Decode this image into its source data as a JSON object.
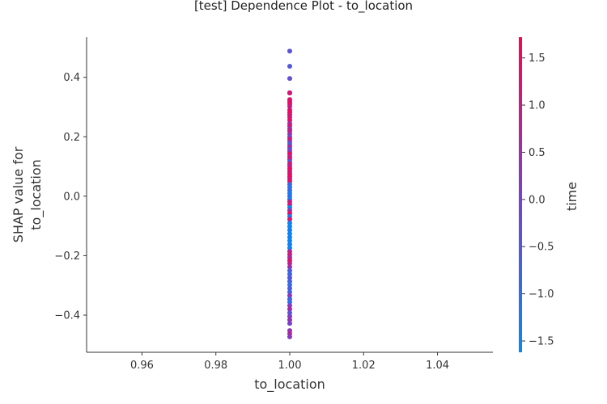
{
  "chart_data": {
    "type": "scatter",
    "title": "[test] Dependence Plot - to_location",
    "xlabel": "to_location",
    "ylabel_lines": [
      "SHAP value for",
      "to_location"
    ],
    "xlim": [
      0.945,
      1.055
    ],
    "ylim": [
      -0.525,
      0.535
    ],
    "xticks": [
      0.96,
      0.98,
      1.0,
      1.02,
      1.04
    ],
    "xtick_labels": [
      "0.96",
      "0.98",
      "1.00",
      "1.02",
      "1.04"
    ],
    "yticks": [
      -0.4,
      -0.2,
      0.0,
      0.2,
      0.4
    ],
    "ytick_labels": [
      "−0.4",
      "−0.2",
      "0.0",
      "0.2",
      "0.4"
    ],
    "colorbar": {
      "label": "time",
      "range": [
        -1.62,
        1.72
      ],
      "ticks": [
        -1.5,
        -1.0,
        -0.5,
        0.0,
        0.5,
        1.0,
        1.5
      ],
      "tick_labels": [
        "−1.5",
        "−1.0",
        "−0.5",
        "0.0",
        "0.5",
        "1.0",
        "1.5"
      ],
      "color_low": "#008afb",
      "color_mid": "#7c3fc9",
      "color_high": "#ff0052"
    },
    "points": [
      {
        "x": 1.0,
        "y": 0.488,
        "c": -0.4
      },
      {
        "x": 1.0,
        "y": 0.437,
        "c": -0.5
      },
      {
        "x": 1.0,
        "y": 0.396,
        "c": -0.3
      },
      {
        "x": 1.0,
        "y": 0.348,
        "c": 1.1
      },
      {
        "x": 1.0,
        "y": 0.347,
        "c": 1.2
      },
      {
        "x": 1.0,
        "y": 0.325,
        "c": 1.4
      },
      {
        "x": 1.0,
        "y": 0.318,
        "c": 1.3
      },
      {
        "x": 1.0,
        "y": 0.31,
        "c": 1.5
      },
      {
        "x": 1.0,
        "y": 0.302,
        "c": 1.0
      },
      {
        "x": 1.0,
        "y": 0.29,
        "c": 1.2
      },
      {
        "x": 1.0,
        "y": 0.282,
        "c": 1.6
      },
      {
        "x": 1.0,
        "y": 0.274,
        "c": 1.3
      },
      {
        "x": 1.0,
        "y": 0.266,
        "c": 1.1
      },
      {
        "x": 1.0,
        "y": 0.256,
        "c": 1.4
      },
      {
        "x": 1.0,
        "y": 0.245,
        "c": 0.6
      },
      {
        "x": 1.0,
        "y": 0.237,
        "c": 1.2
      },
      {
        "x": 1.0,
        "y": 0.228,
        "c": 0.4
      },
      {
        "x": 1.0,
        "y": 0.22,
        "c": 1.0
      },
      {
        "x": 1.0,
        "y": 0.21,
        "c": 0.5
      },
      {
        "x": 1.0,
        "y": 0.2,
        "c": -0.2
      },
      {
        "x": 1.0,
        "y": 0.192,
        "c": 1.3
      },
      {
        "x": 1.0,
        "y": 0.183,
        "c": 0.3
      },
      {
        "x": 1.0,
        "y": 0.175,
        "c": -0.6
      },
      {
        "x": 1.0,
        "y": 0.166,
        "c": 0.8
      },
      {
        "x": 1.0,
        "y": 0.158,
        "c": -0.3
      },
      {
        "x": 1.0,
        "y": 0.15,
        "c": 0.2
      },
      {
        "x": 1.0,
        "y": 0.142,
        "c": 1.5
      },
      {
        "x": 1.0,
        "y": 0.133,
        "c": 0.9
      },
      {
        "x": 1.0,
        "y": 0.125,
        "c": 1.2
      },
      {
        "x": 1.0,
        "y": 0.117,
        "c": -0.4
      },
      {
        "x": 1.0,
        "y": 0.108,
        "c": 1.4
      },
      {
        "x": 1.0,
        "y": 0.1,
        "c": 0.7
      },
      {
        "x": 1.0,
        "y": 0.092,
        "c": 1.6
      },
      {
        "x": 1.0,
        "y": 0.083,
        "c": 1.1
      },
      {
        "x": 1.0,
        "y": 0.075,
        "c": 1.3
      },
      {
        "x": 1.0,
        "y": 0.066,
        "c": 1.5
      },
      {
        "x": 1.0,
        "y": 0.058,
        "c": 1.2
      },
      {
        "x": 1.0,
        "y": 0.05,
        "c": 1.4
      },
      {
        "x": 1.0,
        "y": 0.04,
        "c": -0.8
      },
      {
        "x": 1.0,
        "y": 0.03,
        "c": -1.1
      },
      {
        "x": 1.0,
        "y": 0.02,
        "c": -0.9
      },
      {
        "x": 1.0,
        "y": 0.01,
        "c": -1.3
      },
      {
        "x": 1.0,
        "y": 0.0,
        "c": -1.0
      },
      {
        "x": 1.0,
        "y": -0.01,
        "c": -1.4
      },
      {
        "x": 1.0,
        "y": -0.018,
        "c": 0.9
      },
      {
        "x": 1.0,
        "y": -0.028,
        "c": 1.2
      },
      {
        "x": 1.0,
        "y": -0.038,
        "c": -1.5
      },
      {
        "x": 1.0,
        "y": -0.048,
        "c": 0.4
      },
      {
        "x": 1.0,
        "y": -0.058,
        "c": 1.4
      },
      {
        "x": 1.0,
        "y": -0.068,
        "c": -1.2
      },
      {
        "x": 1.0,
        "y": -0.078,
        "c": 1.3
      },
      {
        "x": 1.0,
        "y": -0.09,
        "c": -1.4
      },
      {
        "x": 1.0,
        "y": -0.102,
        "c": -1.5
      },
      {
        "x": 1.0,
        "y": -0.114,
        "c": -1.3
      },
      {
        "x": 1.0,
        "y": -0.126,
        "c": -1.5
      },
      {
        "x": 1.0,
        "y": -0.138,
        "c": -1.4
      },
      {
        "x": 1.0,
        "y": -0.15,
        "c": -1.5
      },
      {
        "x": 1.0,
        "y": -0.162,
        "c": -1.3
      },
      {
        "x": 1.0,
        "y": -0.174,
        "c": -1.5
      },
      {
        "x": 1.0,
        "y": -0.186,
        "c": 0.8
      },
      {
        "x": 1.0,
        "y": -0.196,
        "c": 1.1
      },
      {
        "x": 1.0,
        "y": -0.206,
        "c": 0.6
      },
      {
        "x": 1.0,
        "y": -0.216,
        "c": 1.3
      },
      {
        "x": 1.0,
        "y": -0.226,
        "c": 0.9
      },
      {
        "x": 1.0,
        "y": -0.238,
        "c": 0.5
      },
      {
        "x": 1.0,
        "y": -0.25,
        "c": -0.6
      },
      {
        "x": 1.0,
        "y": -0.262,
        "c": -0.8
      },
      {
        "x": 1.0,
        "y": -0.274,
        "c": -0.5
      },
      {
        "x": 1.0,
        "y": -0.286,
        "c": -0.7
      },
      {
        "x": 1.0,
        "y": -0.298,
        "c": -0.9
      },
      {
        "x": 1.0,
        "y": -0.31,
        "c": -0.6
      },
      {
        "x": 1.0,
        "y": -0.322,
        "c": -0.8
      },
      {
        "x": 1.0,
        "y": -0.334,
        "c": 0.3
      },
      {
        "x": 1.0,
        "y": -0.346,
        "c": -0.7
      },
      {
        "x": 1.0,
        "y": -0.356,
        "c": -1.0
      },
      {
        "x": 1.0,
        "y": -0.368,
        "c": 0.2
      },
      {
        "x": 1.0,
        "y": -0.38,
        "c": 0.6
      },
      {
        "x": 1.0,
        "y": -0.392,
        "c": -0.4
      },
      {
        "x": 1.0,
        "y": -0.404,
        "c": 0.1
      },
      {
        "x": 1.0,
        "y": -0.416,
        "c": 0.4
      },
      {
        "x": 1.0,
        "y": -0.428,
        "c": 0.0
      },
      {
        "x": 1.0,
        "y": -0.452,
        "c": 0.3
      },
      {
        "x": 1.0,
        "y": -0.462,
        "c": 0.7
      },
      {
        "x": 1.0,
        "y": -0.473,
        "c": 0.2
      }
    ]
  }
}
